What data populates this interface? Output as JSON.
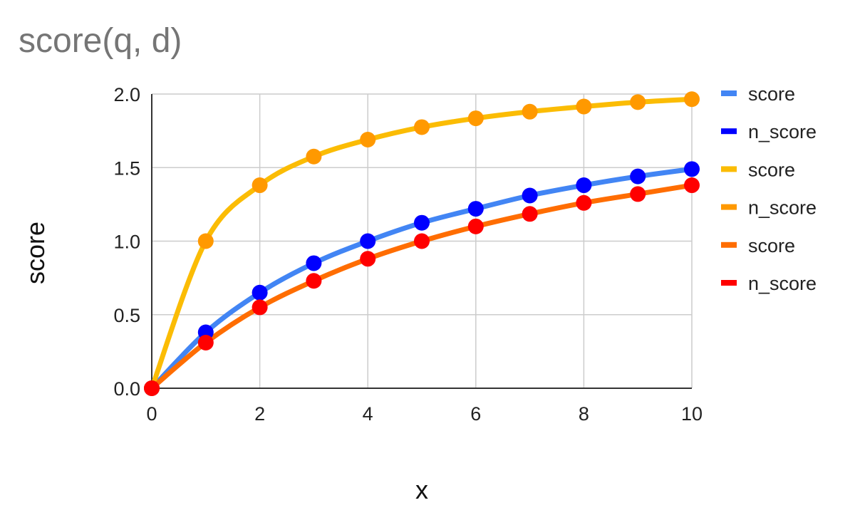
{
  "chart_data": {
    "type": "line",
    "title": "score(q, d)",
    "xlabel": "x",
    "ylabel": "score",
    "xlim": [
      0,
      10
    ],
    "ylim": [
      0,
      2.0
    ],
    "x_ticks": [
      "0",
      "2",
      "4",
      "6",
      "8",
      "10"
    ],
    "y_ticks": [
      "0.0",
      "0.5",
      "1.0",
      "1.5",
      "2.0"
    ],
    "grid": true,
    "legend_position": "right",
    "x": [
      0,
      1,
      2,
      3,
      4,
      5,
      6,
      7,
      8,
      9,
      10
    ],
    "series": [
      {
        "name": "score",
        "kind": "line",
        "color": "#4285f4",
        "values": [
          0,
          0.38,
          0.65,
          0.85,
          1.0,
          1.125,
          1.22,
          1.31,
          1.38,
          1.44,
          1.49
        ]
      },
      {
        "name": "n_score",
        "kind": "points",
        "color": "#0000ff",
        "values": [
          0,
          0.38,
          0.65,
          0.85,
          1.0,
          1.125,
          1.22,
          1.31,
          1.38,
          1.44,
          1.49
        ]
      },
      {
        "name": "score",
        "kind": "line",
        "color": "#fbbc04",
        "values": [
          0,
          1.0,
          1.38,
          1.575,
          1.69,
          1.775,
          1.835,
          1.88,
          1.915,
          1.945,
          1.965
        ]
      },
      {
        "name": "n_score",
        "kind": "points",
        "color": "#ff9900",
        "values": [
          0,
          1.0,
          1.38,
          1.575,
          1.69,
          1.775,
          1.835,
          1.88,
          1.915,
          1.945,
          1.965
        ]
      },
      {
        "name": "score",
        "kind": "line",
        "color": "#ff6d01",
        "values": [
          0,
          0.31,
          0.55,
          0.73,
          0.88,
          1.0,
          1.1,
          1.185,
          1.26,
          1.32,
          1.38
        ]
      },
      {
        "name": "n_score",
        "kind": "points",
        "color": "#ff0000",
        "values": [
          0,
          0.31,
          0.55,
          0.73,
          0.88,
          1.0,
          1.1,
          1.185,
          1.26,
          1.32,
          1.38
        ]
      }
    ]
  },
  "legend": {
    "items": [
      {
        "label": "score",
        "color": "#4285f4"
      },
      {
        "label": "n_score",
        "color": "#0000ff"
      },
      {
        "label": "score",
        "color": "#fbbc04"
      },
      {
        "label": "n_score",
        "color": "#ff9900"
      },
      {
        "label": "score",
        "color": "#ff6d01"
      },
      {
        "label": "n_score",
        "color": "#ff0000"
      }
    ]
  }
}
